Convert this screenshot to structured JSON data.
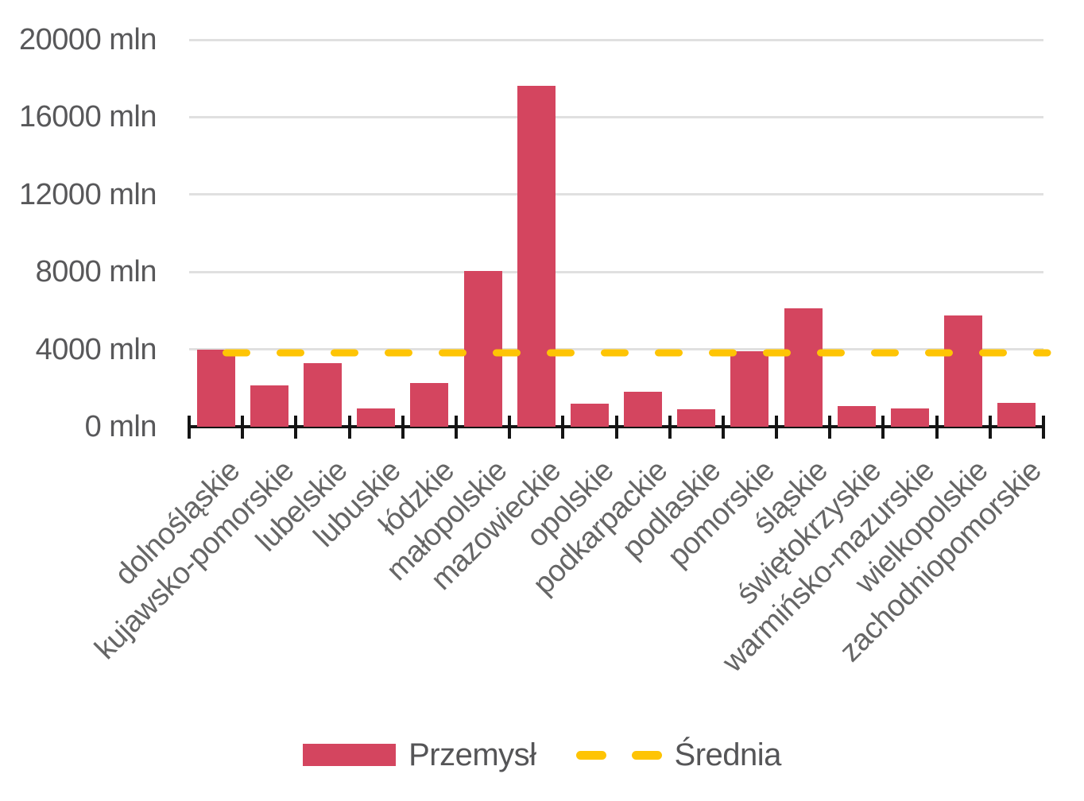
{
  "chart_data": {
    "type": "bar",
    "title": "",
    "xlabel": "",
    "ylabel": "",
    "grid": "horizontal",
    "legend_position": "bottom",
    "categories": [
      "dolnośląskie",
      "kujawsko-pomorskie",
      "lubelskie",
      "lubuskie",
      "łódzkie",
      "małopolskie",
      "mazowieckie",
      "opolskie",
      "podkarpackie",
      "podlaskie",
      "pomorskie",
      "śląskie",
      "świętokrzyskie",
      "warmińsko-mazurskie",
      "wielkopolskie",
      "zachodniopomorskie"
    ],
    "series": [
      {
        "name": "Przemysł",
        "color": "#d4455f",
        "values": [
          4000,
          2150,
          3300,
          950,
          2250,
          8050,
          17600,
          1200,
          1800,
          900,
          3900,
          6100,
          1050,
          950,
          5750,
          1250
        ]
      }
    ],
    "average_line": {
      "name": "Średnia",
      "value": 3825,
      "color": "#fec404",
      "style": "dashed"
    },
    "y_axis": {
      "tick_values": [
        0,
        4000,
        8000,
        12000,
        16000,
        20000
      ],
      "tick_suffix": " mln",
      "ylim": [
        0,
        20000
      ]
    }
  },
  "colors": {
    "bar": "#d4455f",
    "average": "#fec404",
    "gridline": "#e0e0e0",
    "axis": "#141414",
    "y_label": "#58585a",
    "x_label": "#666666",
    "legend_text": "#555557",
    "background": "#ffffff"
  }
}
